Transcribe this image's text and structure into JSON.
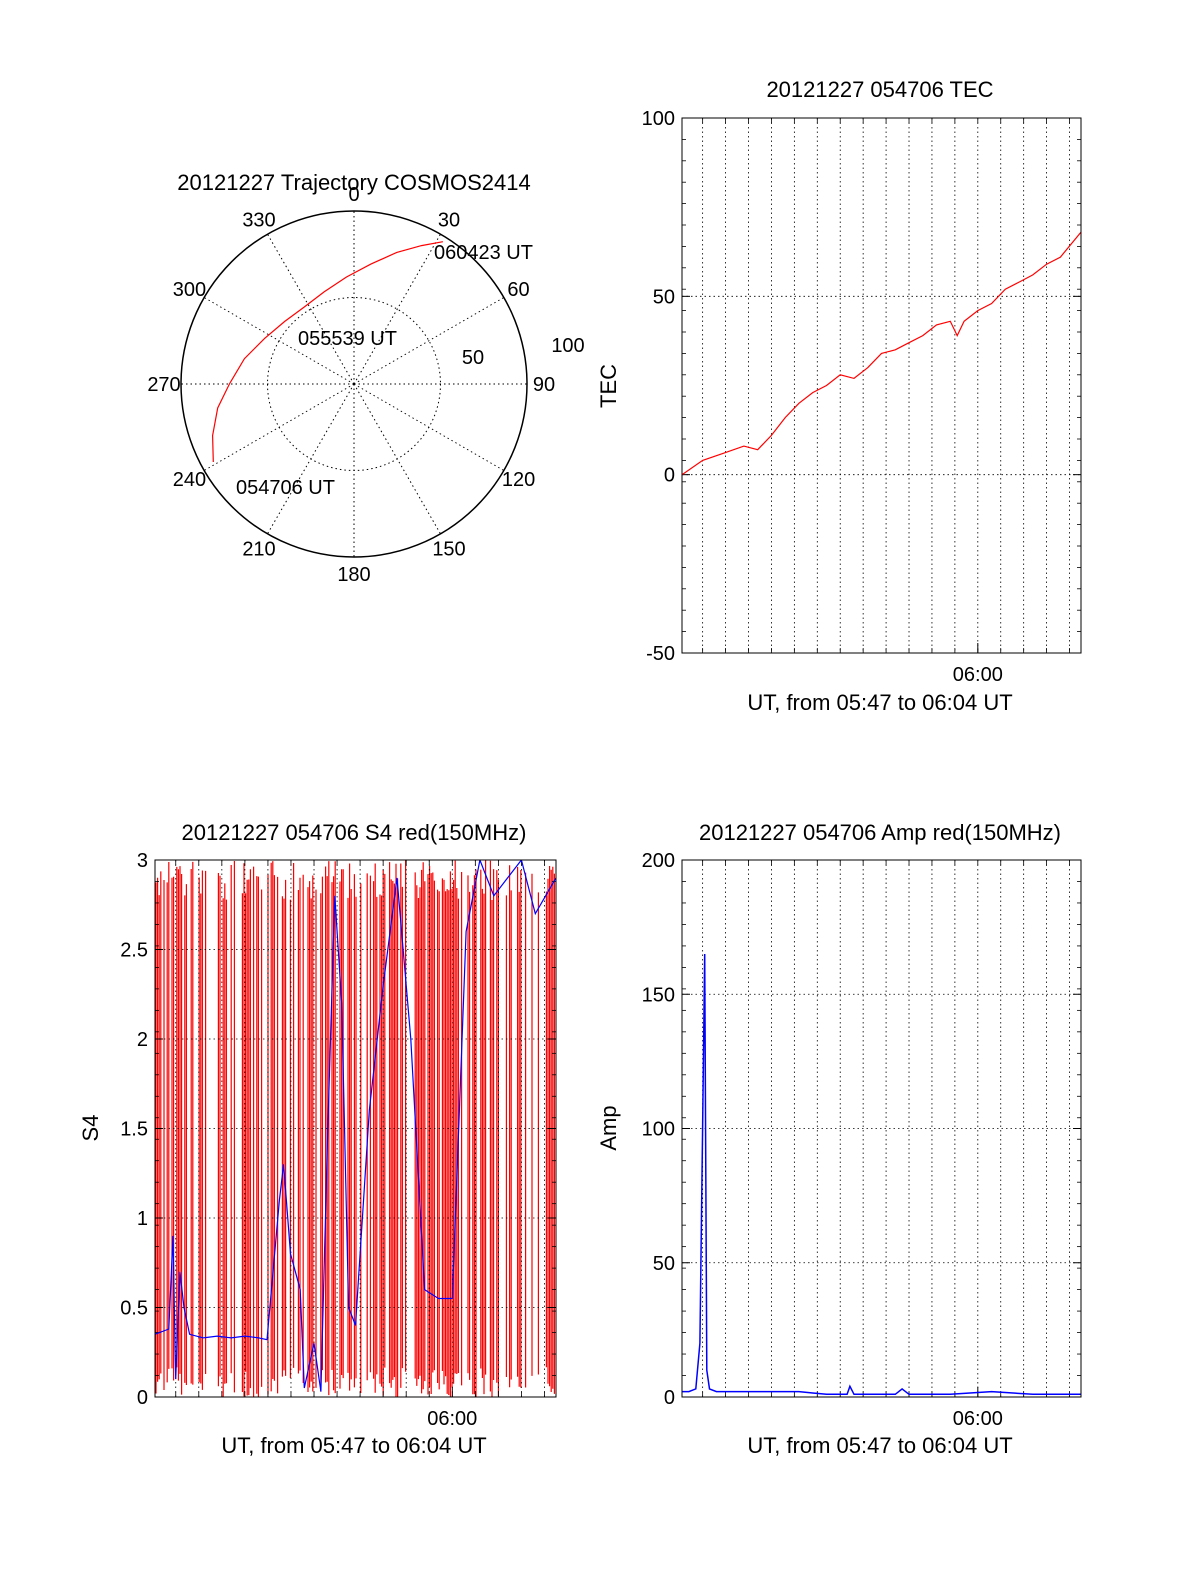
{
  "chart_data": [
    {
      "type": "polar",
      "title": "20121227 Trajectory COSMOS2414",
      "azimuth_labels": [
        "0",
        "30",
        "60",
        "90",
        "120",
        "150",
        "180",
        "210",
        "240",
        "270",
        "300",
        "330"
      ],
      "radius_labels": [
        "50",
        "100"
      ],
      "radius_range": [
        0,
        100
      ],
      "grid": true,
      "series": [
        {
          "color": "#ff0000",
          "points": [
            {
              "azimuth": 241,
              "radius": 93
            },
            {
              "azimuth": 250,
              "radius": 87
            },
            {
              "azimuth": 260,
              "radius": 80
            },
            {
              "azimuth": 270,
              "radius": 72
            },
            {
              "azimuth": 283,
              "radius": 65
            },
            {
              "azimuth": 297,
              "radius": 58
            },
            {
              "azimuth": 312,
              "radius": 54
            },
            {
              "azimuth": 327,
              "radius": 53
            },
            {
              "azimuth": 342,
              "radius": 56
            },
            {
              "azimuth": 356,
              "radius": 62
            },
            {
              "azimuth": 8,
              "radius": 70
            },
            {
              "azimuth": 18,
              "radius": 80
            },
            {
              "azimuth": 26,
              "radius": 89
            },
            {
              "azimuth": 32,
              "radius": 97
            }
          ]
        }
      ],
      "annotations": [
        "060423 UT",
        "055539 UT",
        "054706 UT"
      ]
    },
    {
      "type": "line",
      "title": "20121227 054706 TEC",
      "xlabel": "UT, from 05:47 to 06:04 UT",
      "ylabel": "TEC",
      "xlim": [
        5.785,
        6.075
      ],
      "ylim": [
        -50,
        100
      ],
      "yticks": [
        "-50",
        "0",
        "50",
        "100"
      ],
      "xticks": [
        {
          "x": 6.0,
          "label": "06:00"
        }
      ],
      "grid": true,
      "series": [
        {
          "color": "#ff0000",
          "x": [
            5.785,
            5.8,
            5.815,
            5.83,
            5.84,
            5.85,
            5.86,
            5.87,
            5.88,
            5.89,
            5.9,
            5.91,
            5.92,
            5.93,
            5.94,
            5.95,
            5.96,
            5.97,
            5.98,
            5.985,
            5.99,
            6.0,
            6.01,
            6.02,
            6.03,
            6.04,
            6.05,
            6.06,
            6.075
          ],
          "y": [
            0,
            4,
            6,
            8,
            7,
            11,
            16,
            20,
            23,
            25,
            28,
            27,
            30,
            34,
            35,
            37,
            39,
            42,
            43,
            39,
            43,
            46,
            48,
            52,
            54,
            56,
            59,
            61,
            68
          ]
        }
      ]
    },
    {
      "type": "line",
      "title": "20121227 054706 S4 red(150MHz)",
      "xlabel": "UT, from 05:47 to 06:04 UT",
      "ylabel": "S4",
      "xlim": [
        5.785,
        6.075
      ],
      "ylim": [
        0,
        3
      ],
      "yticks": [
        "0",
        "0.5",
        "1",
        "1.5",
        "2",
        "2.5",
        "3"
      ],
      "xticks": [
        {
          "x": 6.0,
          "label": "06:00"
        }
      ],
      "grid": true,
      "series": [
        {
          "color": "#0000ff",
          "x": [
            5.785,
            5.795,
            5.798,
            5.8,
            5.803,
            5.806,
            5.81,
            5.82,
            5.83,
            5.84,
            5.85,
            5.86,
            5.866,
            5.875,
            5.878,
            5.883,
            5.89,
            5.893,
            5.9,
            5.905,
            5.91,
            5.915,
            5.92,
            5.925,
            5.93,
            5.94,
            5.95,
            5.96,
            5.97,
            5.98,
            5.99,
            6.0,
            6.01,
            6.02,
            6.03,
            6.04,
            6.05,
            6.06,
            6.075
          ],
          "y": [
            0.35,
            0.38,
            0.9,
            0.1,
            0.7,
            0.5,
            0.35,
            0.33,
            0.34,
            0.33,
            0.34,
            0.33,
            0.32,
            1.1,
            1.3,
            0.8,
            0.6,
            0.05,
            0.3,
            0.03,
            1.5,
            2.8,
            2.2,
            0.5,
            0.4,
            1.6,
            2.3,
            2.9,
            2.0,
            0.6,
            0.55,
            0.55,
            2.6,
            3.0,
            2.8,
            2.9,
            3.0,
            2.7,
            2.9
          ]
        }
      ]
    },
    {
      "type": "line",
      "title": "20121227 054706 Amp red(150MHz)",
      "xlabel": "UT, from 05:47 to 06:04 UT",
      "ylabel": "Amp",
      "xlim": [
        5.785,
        6.075
      ],
      "ylim": [
        0,
        200
      ],
      "yticks": [
        "0",
        "50",
        "100",
        "150",
        "200"
      ],
      "xticks": [
        {
          "x": 6.0,
          "label": "06:00"
        }
      ],
      "grid": true,
      "series": [
        {
          "color": "#0000ff",
          "x": [
            5.785,
            5.79,
            5.795,
            5.798,
            5.8,
            5.8015,
            5.803,
            5.805,
            5.81,
            5.83,
            5.85,
            5.87,
            5.88,
            5.89,
            5.905,
            5.907,
            5.91,
            5.93,
            5.94,
            5.945,
            5.95,
            5.98,
            6.01,
            6.04,
            6.075
          ],
          "y": [
            2,
            2,
            3,
            20,
            100,
            165,
            10,
            3,
            2,
            2,
            2,
            2,
            1.5,
            1,
            1,
            4,
            1,
            1,
            1,
            3,
            1,
            1,
            2,
            1,
            1
          ]
        }
      ]
    }
  ]
}
